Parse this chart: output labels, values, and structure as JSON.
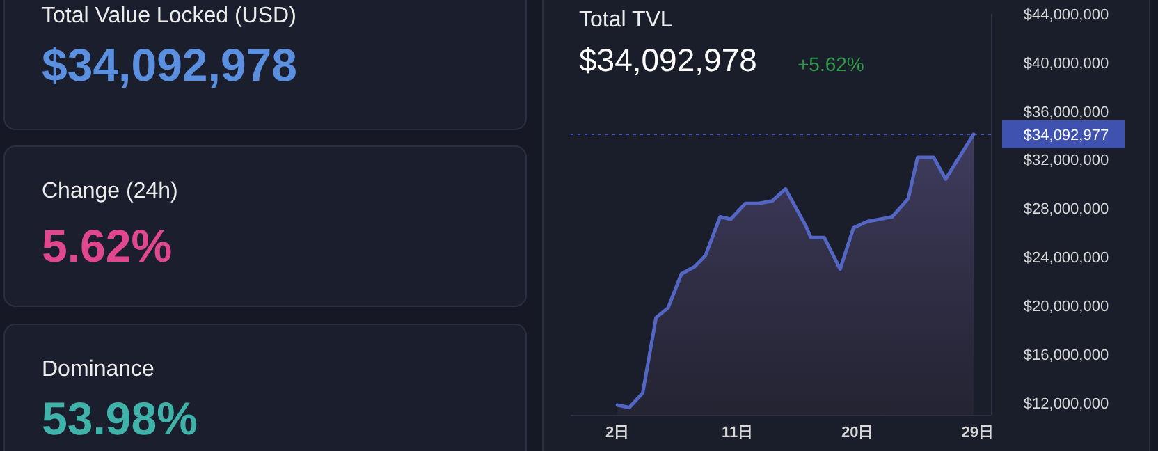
{
  "chart_data": [
    {
      "type": "other",
      "title": "Total Value Locked (USD)",
      "annotations": [
        "$34,092,978"
      ],
      "color": "#5b8fe0"
    },
    {
      "type": "other",
      "title": "Change (24h)",
      "annotations": [
        "5.62%"
      ],
      "color": "#e0478f"
    },
    {
      "type": "other",
      "title": "Dominance",
      "annotations": [
        "53.98%"
      ],
      "color": "#3fb3aa"
    },
    {
      "type": "area",
      "title": "Total TVL",
      "subtitle": "$34,092,978",
      "annotations": [
        "+5.62%"
      ],
      "x": [
        2.0,
        2.9,
        3.9,
        4.9,
        5.8,
        6.8,
        7.8,
        8.6,
        9.7,
        10.5,
        11.6,
        12.6,
        13.6,
        14.6,
        16.1,
        16.5,
        17.5,
        18.7,
        19.7,
        20.7,
        22.6,
        23.8,
        24.5,
        25.7,
        26.6,
        28.7
      ],
      "series": [
        {
          "color": "#5366c4",
          "values": [
            11800000,
            11600000,
            12800000,
            19000000,
            19800000,
            22600000,
            23200000,
            24100000,
            27300000,
            27100000,
            28400000,
            28400000,
            28600000,
            29600000,
            26600000,
            25600000,
            25600000,
            23000000,
            26400000,
            26900000,
            27300000,
            28800000,
            32200000,
            32200000,
            30400000,
            34100000
          ]
        }
      ],
      "xlim": [
        -1.5,
        30
      ],
      "xticks": [
        {
          "value": 2,
          "label": "2日"
        },
        {
          "value": 11,
          "label": "11日"
        },
        {
          "value": 20,
          "label": "20日"
        },
        {
          "value": 29,
          "label": "29日"
        }
      ],
      "ylim": [
        11000000,
        44000000
      ],
      "yticks": [
        {
          "value": 12000000,
          "label": "$12,000,000"
        },
        {
          "value": 16000000,
          "label": "$16,000,000"
        },
        {
          "value": 20000000,
          "label": "$20,000,000"
        },
        {
          "value": 24000000,
          "label": "$24,000,000"
        },
        {
          "value": 28000000,
          "label": "$28,000,000"
        },
        {
          "value": 32000000,
          "label": "$32,000,000"
        },
        {
          "value": 36000000,
          "label": "$36,000,000"
        },
        {
          "value": 40000000,
          "label": "$40,000,000"
        },
        {
          "value": 44000000,
          "label": "$44,000,000"
        }
      ],
      "ref_lines": [
        {
          "axis": "y",
          "value": 34092977,
          "label": "$34,092,977",
          "color": "#3f52b0",
          "line_style": "dotted"
        }
      ]
    }
  ]
}
